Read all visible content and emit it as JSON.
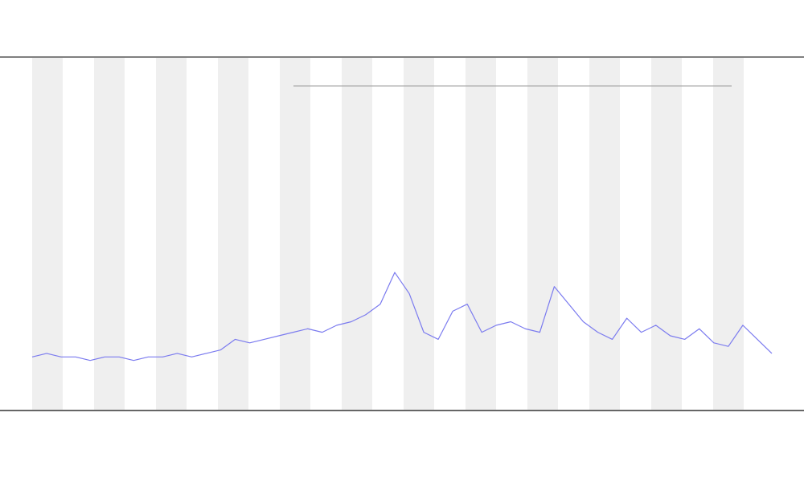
{
  "chart_data": {
    "type": "line",
    "color": "#7b7bef",
    "values": [
      15,
      16,
      15,
      15,
      14,
      15,
      15,
      14,
      15,
      15,
      16,
      15,
      16,
      17,
      20,
      19,
      20,
      21,
      22,
      23,
      22,
      24,
      25,
      27,
      30,
      39,
      33,
      22,
      20,
      28,
      30,
      22,
      24,
      25,
      23,
      22,
      35,
      30,
      25,
      22,
      20,
      26,
      22,
      24,
      21,
      20,
      23,
      19,
      18,
      24,
      20,
      16
    ],
    "ylim": [
      0,
      100
    ]
  }
}
